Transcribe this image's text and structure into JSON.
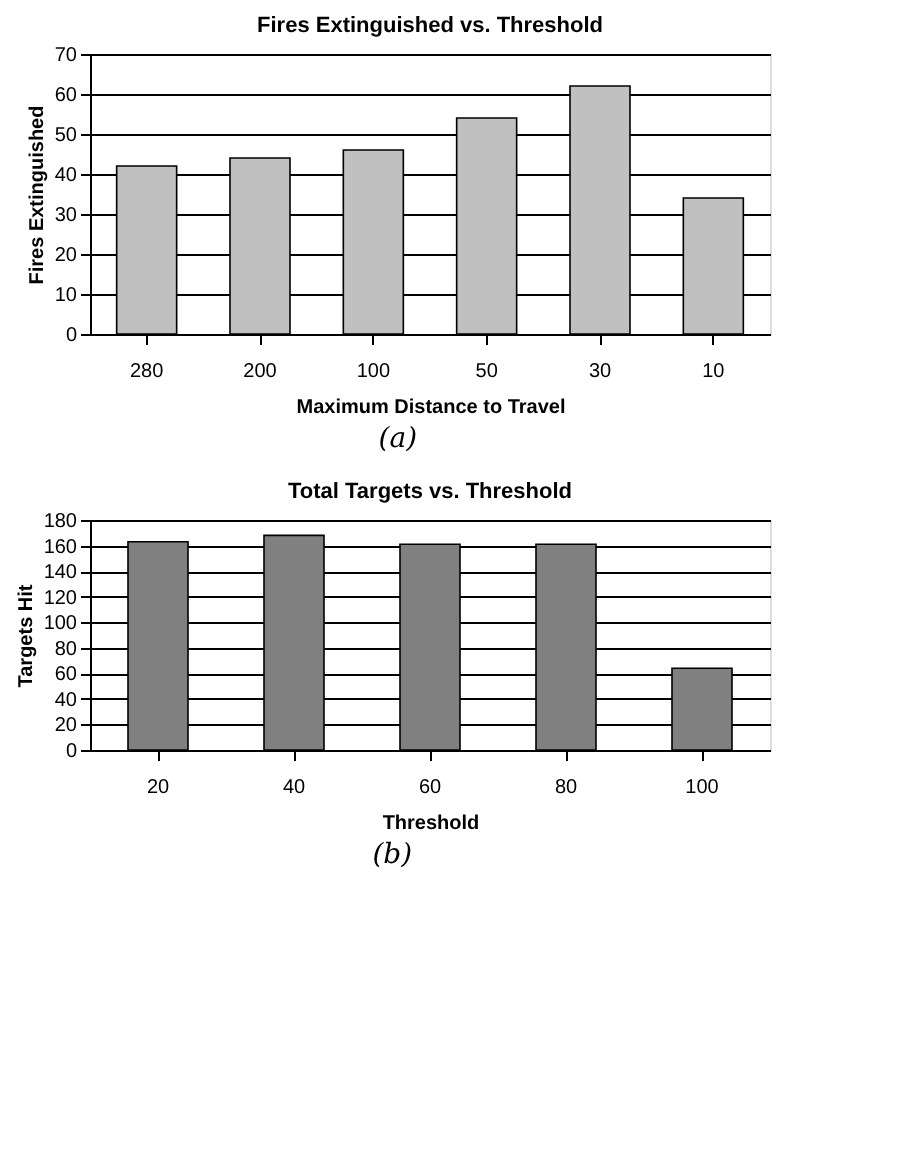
{
  "chart_data": [
    {
      "type": "bar",
      "title": "Fires Extinguished vs. Threshold",
      "xlabel": "Maximum Distance to Travel",
      "ylabel": "Fires Extinguished",
      "categories": [
        "280",
        "200",
        "100",
        "50",
        "30",
        "10"
      ],
      "series": [
        {
          "color": "#c0c0c0",
          "values": [
            42,
            44,
            46,
            54,
            62,
            34
          ]
        }
      ],
      "ylim": [
        0,
        70
      ],
      "yticks": [
        0,
        10,
        20,
        30,
        40,
        50,
        60,
        70
      ],
      "grid": "y",
      "annotations": [
        "(a)"
      ]
    },
    {
      "type": "bar",
      "title": "Total Targets vs. Threshold",
      "xlabel": "Threshold",
      "ylabel": "Targets Hit",
      "categories": [
        "20",
        "40",
        "60",
        "80",
        "100"
      ],
      "series": [
        {
          "color": "#808080",
          "values": [
            163,
            168,
            161,
            161,
            64
          ]
        }
      ],
      "ylim": [
        0,
        180
      ],
      "yticks": [
        0,
        20,
        40,
        60,
        80,
        100,
        120,
        140,
        160,
        180
      ],
      "grid": "y",
      "annotations": [
        "(b)"
      ]
    }
  ]
}
